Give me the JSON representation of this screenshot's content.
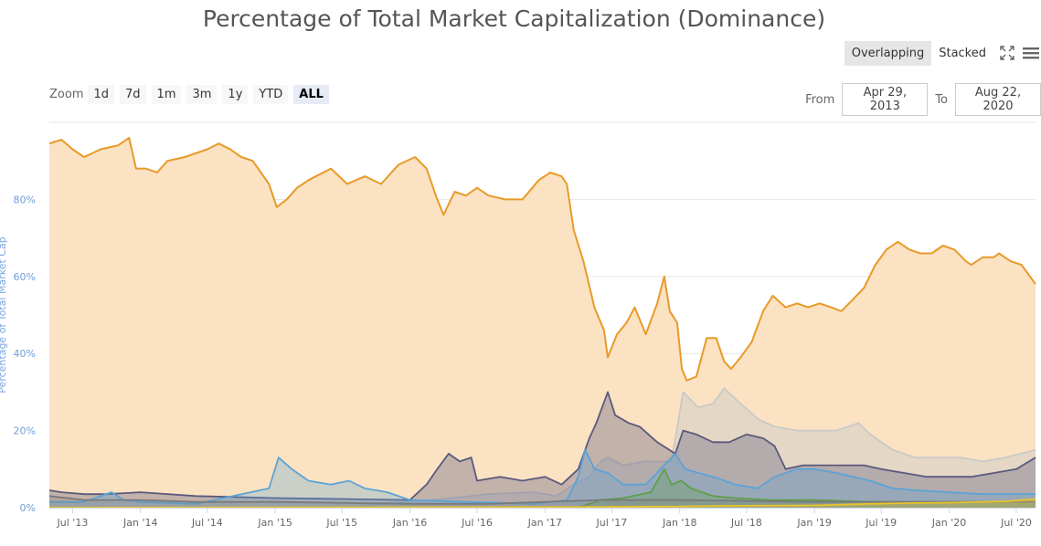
{
  "title": "Percentage of Total Market Capitalization (Dominance)",
  "view_buttons": {
    "overlapping": "Overlapping",
    "stacked": "Stacked"
  },
  "icons": {
    "fullscreen": "fullscreen-icon",
    "menu": "hamburger-menu-icon"
  },
  "zoom": {
    "label": "Zoom",
    "options": [
      "1d",
      "7d",
      "1m",
      "3m",
      "1y",
      "YTD",
      "ALL"
    ],
    "active": "ALL"
  },
  "range": {
    "from_label": "From",
    "from_value": "Apr 29, 2013",
    "to_label": "To",
    "to_value": "Aug 22, 2020"
  },
  "colors": {
    "btc": "#e89a29",
    "btc_fill": "#fbe2c2",
    "eth": "#c9c9c9",
    "other1": "#5a5a7e",
    "other2": "#5ba3d6",
    "other3": "#5f9e4a",
    "other4": "#7a7a7a",
    "other5": "#e8c32a",
    "grid": "#e6e6e6",
    "axis": "#ccd6eb"
  },
  "chart_data": {
    "type": "area",
    "ylabel": "Percentage of Total Market Cap",
    "ylim": [
      0,
      100
    ],
    "yticks": [
      "0%",
      "20%",
      "40%",
      "60%",
      "80%"
    ],
    "xticks": [
      "Jul '13",
      "Jan '14",
      "Jul '14",
      "Jan '15",
      "Jul '15",
      "Jan '16",
      "Jul '16",
      "Jan '17",
      "Jul '17",
      "Jan '18",
      "Jul '18",
      "Jan '19",
      "Jul '19",
      "Jan '20",
      "Jul '20"
    ],
    "xrange": [
      "2013-04-29",
      "2020-08-22"
    ],
    "grid": true,
    "series": [
      {
        "key": "btc",
        "points": [
          [
            "2013-04-29",
            94.5
          ],
          [
            "2013-06-01",
            95.5
          ],
          [
            "2013-07-01",
            93
          ],
          [
            "2013-08-01",
            91
          ],
          [
            "2013-09-15",
            93
          ],
          [
            "2013-11-01",
            94
          ],
          [
            "2013-12-01",
            96
          ],
          [
            "2013-12-20",
            88
          ],
          [
            "2014-01-15",
            88
          ],
          [
            "2014-02-15",
            87
          ],
          [
            "2014-03-15",
            90
          ],
          [
            "2014-05-01",
            91
          ],
          [
            "2014-07-01",
            93
          ],
          [
            "2014-08-01",
            94.5
          ],
          [
            "2014-09-01",
            93
          ],
          [
            "2014-10-01",
            91
          ],
          [
            "2014-11-01",
            90
          ],
          [
            "2014-12-15",
            84
          ],
          [
            "2015-01-05",
            78
          ],
          [
            "2015-02-01",
            80
          ],
          [
            "2015-03-01",
            83
          ],
          [
            "2015-04-01",
            85
          ],
          [
            "2015-06-01",
            88
          ],
          [
            "2015-07-15",
            84
          ],
          [
            "2015-09-01",
            86
          ],
          [
            "2015-10-15",
            84
          ],
          [
            "2015-12-01",
            89
          ],
          [
            "2016-01-15",
            91
          ],
          [
            "2016-02-15",
            88
          ],
          [
            "2016-03-15",
            80
          ],
          [
            "2016-04-01",
            76
          ],
          [
            "2016-05-01",
            82
          ],
          [
            "2016-06-01",
            81
          ],
          [
            "2016-07-01",
            83
          ],
          [
            "2016-08-01",
            81
          ],
          [
            "2016-09-15",
            80
          ],
          [
            "2016-11-01",
            80
          ],
          [
            "2016-12-15",
            85
          ],
          [
            "2017-01-15",
            87
          ],
          [
            "2017-02-15",
            86
          ],
          [
            "2017-03-01",
            84
          ],
          [
            "2017-03-20",
            72
          ],
          [
            "2017-04-15",
            64
          ],
          [
            "2017-05-15",
            52
          ],
          [
            "2017-06-10",
            46
          ],
          [
            "2017-06-20",
            39
          ],
          [
            "2017-07-15",
            45
          ],
          [
            "2017-08-10",
            48
          ],
          [
            "2017-09-01",
            52
          ],
          [
            "2017-10-01",
            45
          ],
          [
            "2017-11-01",
            53
          ],
          [
            "2017-11-20",
            60
          ],
          [
            "2017-12-05",
            51
          ],
          [
            "2017-12-25",
            48
          ],
          [
            "2018-01-07",
            36
          ],
          [
            "2018-01-20",
            33
          ],
          [
            "2018-02-15",
            34
          ],
          [
            "2018-03-15",
            44
          ],
          [
            "2018-04-10",
            44
          ],
          [
            "2018-05-01",
            38
          ],
          [
            "2018-05-20",
            36
          ],
          [
            "2018-06-15",
            39
          ],
          [
            "2018-07-15",
            43
          ],
          [
            "2018-08-15",
            51
          ],
          [
            "2018-09-10",
            55
          ],
          [
            "2018-10-15",
            52
          ],
          [
            "2018-11-15",
            53
          ],
          [
            "2018-12-15",
            52
          ],
          [
            "2019-01-15",
            53
          ],
          [
            "2019-02-15",
            52
          ],
          [
            "2019-03-15",
            51
          ],
          [
            "2019-04-15",
            54
          ],
          [
            "2019-05-15",
            57
          ],
          [
            "2019-06-15",
            63
          ],
          [
            "2019-07-15",
            67
          ],
          [
            "2019-08-15",
            69
          ],
          [
            "2019-09-15",
            67
          ],
          [
            "2019-10-15",
            66
          ],
          [
            "2019-11-15",
            66
          ],
          [
            "2019-12-15",
            68
          ],
          [
            "2020-01-15",
            67
          ],
          [
            "2020-02-15",
            64
          ],
          [
            "2020-03-01",
            63
          ],
          [
            "2020-04-01",
            65
          ],
          [
            "2020-05-01",
            65
          ],
          [
            "2020-05-15",
            66
          ],
          [
            "2020-06-15",
            64
          ],
          [
            "2020-07-15",
            63
          ],
          [
            "2020-08-22",
            58
          ]
        ]
      },
      {
        "key": "eth",
        "points": [
          [
            "2013-04-29",
            0
          ],
          [
            "2015-08-01",
            0
          ],
          [
            "2015-10-01",
            1
          ],
          [
            "2016-03-01",
            2
          ],
          [
            "2016-06-15",
            3
          ],
          [
            "2016-08-01",
            3.5
          ],
          [
            "2016-12-01",
            4
          ],
          [
            "2017-02-01",
            3
          ],
          [
            "2017-03-20",
            6
          ],
          [
            "2017-05-01",
            8
          ],
          [
            "2017-06-01",
            12
          ],
          [
            "2017-06-20",
            13
          ],
          [
            "2017-08-01",
            11
          ],
          [
            "2017-10-01",
            12
          ],
          [
            "2017-12-10",
            12
          ],
          [
            "2018-01-10",
            30
          ],
          [
            "2018-02-20",
            26
          ],
          [
            "2018-04-01",
            27
          ],
          [
            "2018-05-01",
            31
          ],
          [
            "2018-06-15",
            27
          ],
          [
            "2018-08-01",
            23
          ],
          [
            "2018-09-15",
            21
          ],
          [
            "2018-11-15",
            20
          ],
          [
            "2019-01-01",
            20
          ],
          [
            "2019-03-01",
            20
          ],
          [
            "2019-05-01",
            22
          ],
          [
            "2019-06-01",
            19
          ],
          [
            "2019-08-01",
            15
          ],
          [
            "2019-10-01",
            13
          ],
          [
            "2019-12-01",
            13
          ],
          [
            "2020-02-01",
            13
          ],
          [
            "2020-04-01",
            12
          ],
          [
            "2020-06-01",
            13
          ],
          [
            "2020-08-22",
            15
          ]
        ]
      },
      {
        "key": "other1",
        "points": [
          [
            "2013-04-29",
            4.5
          ],
          [
            "2013-06-01",
            4
          ],
          [
            "2013-08-01",
            3.5
          ],
          [
            "2013-10-01",
            3.5
          ],
          [
            "2014-01-01",
            4
          ],
          [
            "2014-06-01",
            3
          ],
          [
            "2015-01-01",
            2.5
          ],
          [
            "2016-01-01",
            2
          ],
          [
            "2016-02-15",
            6
          ],
          [
            "2016-03-15",
            10
          ],
          [
            "2016-04-15",
            14
          ],
          [
            "2016-05-15",
            12
          ],
          [
            "2016-06-15",
            13
          ],
          [
            "2016-07-01",
            7
          ],
          [
            "2016-09-01",
            8
          ],
          [
            "2016-11-01",
            7
          ],
          [
            "2017-01-01",
            8
          ],
          [
            "2017-02-15",
            6
          ],
          [
            "2017-04-01",
            10
          ],
          [
            "2017-05-01",
            18
          ],
          [
            "2017-05-20",
            22
          ],
          [
            "2017-06-20",
            30
          ],
          [
            "2017-07-10",
            24
          ],
          [
            "2017-08-15",
            22
          ],
          [
            "2017-09-15",
            21
          ],
          [
            "2017-11-01",
            17
          ],
          [
            "2017-12-20",
            14
          ],
          [
            "2018-01-10",
            20
          ],
          [
            "2018-02-15",
            19
          ],
          [
            "2018-04-01",
            17
          ],
          [
            "2018-05-15",
            17
          ],
          [
            "2018-07-01",
            19
          ],
          [
            "2018-08-15",
            18
          ],
          [
            "2018-09-15",
            16
          ],
          [
            "2018-10-15",
            10
          ],
          [
            "2018-12-01",
            11
          ],
          [
            "2019-01-15",
            11
          ],
          [
            "2019-03-15",
            11
          ],
          [
            "2019-05-15",
            11
          ],
          [
            "2019-07-01",
            10
          ],
          [
            "2019-09-01",
            9
          ],
          [
            "2019-11-01",
            8
          ],
          [
            "2020-01-01",
            8
          ],
          [
            "2020-03-01",
            8
          ],
          [
            "2020-05-01",
            9
          ],
          [
            "2020-07-01",
            10
          ],
          [
            "2020-08-22",
            13
          ]
        ]
      },
      {
        "key": "other2",
        "points": [
          [
            "2013-04-29",
            1.5
          ],
          [
            "2013-08-01",
            1.5
          ],
          [
            "2013-10-15",
            4
          ],
          [
            "2013-11-15",
            2
          ],
          [
            "2014-01-01",
            1.5
          ],
          [
            "2014-06-01",
            1
          ],
          [
            "2014-12-15",
            5
          ],
          [
            "2015-01-10",
            13
          ],
          [
            "2015-02-15",
            10
          ],
          [
            "2015-04-01",
            7
          ],
          [
            "2015-06-01",
            6
          ],
          [
            "2015-07-20",
            7
          ],
          [
            "2015-09-01",
            5
          ],
          [
            "2015-11-01",
            4
          ],
          [
            "2016-01-01",
            2
          ],
          [
            "2016-06-01",
            1.5
          ],
          [
            "2016-12-01",
            1
          ],
          [
            "2017-03-01",
            2
          ],
          [
            "2017-04-01",
            8
          ],
          [
            "2017-04-20",
            15
          ],
          [
            "2017-05-15",
            10
          ],
          [
            "2017-06-20",
            9
          ],
          [
            "2017-08-01",
            6
          ],
          [
            "2017-10-01",
            6
          ],
          [
            "2017-12-20",
            14
          ],
          [
            "2018-01-15",
            10
          ],
          [
            "2018-04-01",
            8
          ],
          [
            "2018-06-01",
            6
          ],
          [
            "2018-08-01",
            5
          ],
          [
            "2018-09-15",
            8
          ],
          [
            "2018-11-15",
            10
          ],
          [
            "2019-01-01",
            10
          ],
          [
            "2019-03-01",
            9
          ],
          [
            "2019-06-01",
            7
          ],
          [
            "2019-08-01",
            5
          ],
          [
            "2019-10-01",
            4.5
          ],
          [
            "2020-01-01",
            4
          ],
          [
            "2020-04-01",
            3.5
          ],
          [
            "2020-08-22",
            3.5
          ]
        ]
      },
      {
        "key": "other3",
        "points": [
          [
            "2013-04-29",
            0
          ],
          [
            "2017-04-01",
            0
          ],
          [
            "2017-06-01",
            2
          ],
          [
            "2017-08-01",
            2.5
          ],
          [
            "2017-10-15",
            4
          ],
          [
            "2017-11-20",
            10
          ],
          [
            "2017-12-10",
            6
          ],
          [
            "2018-01-05",
            7
          ],
          [
            "2018-02-01",
            5
          ],
          [
            "2018-04-01",
            3
          ],
          [
            "2018-06-01",
            2.5
          ],
          [
            "2018-09-01",
            2
          ],
          [
            "2019-01-01",
            2
          ],
          [
            "2019-06-01",
            1.5
          ],
          [
            "2020-01-01",
            1.5
          ],
          [
            "2020-08-22",
            1.5
          ]
        ]
      },
      {
        "key": "other4",
        "points": [
          [
            "2013-04-29",
            3
          ],
          [
            "2013-08-01",
            2
          ],
          [
            "2014-01-01",
            2
          ],
          [
            "2014-06-01",
            1.5
          ],
          [
            "2015-01-01",
            1.5
          ],
          [
            "2016-01-01",
            1
          ],
          [
            "2016-08-01",
            1
          ],
          [
            "2017-01-01",
            1.5
          ],
          [
            "2017-06-01",
            2
          ],
          [
            "2018-01-01",
            2
          ],
          [
            "2019-01-01",
            1.5
          ],
          [
            "2020-01-01",
            1.5
          ],
          [
            "2020-08-22",
            1.5
          ]
        ]
      },
      {
        "key": "other5",
        "points": [
          [
            "2013-04-29",
            0
          ],
          [
            "2017-06-01",
            0.2
          ],
          [
            "2018-01-01",
            0.3
          ],
          [
            "2018-06-01",
            0.5
          ],
          [
            "2019-01-01",
            0.6
          ],
          [
            "2019-06-01",
            1
          ],
          [
            "2019-10-01",
            1.2
          ],
          [
            "2020-01-01",
            1.3
          ],
          [
            "2020-06-01",
            1.6
          ],
          [
            "2020-08-22",
            2.2
          ]
        ]
      }
    ]
  }
}
